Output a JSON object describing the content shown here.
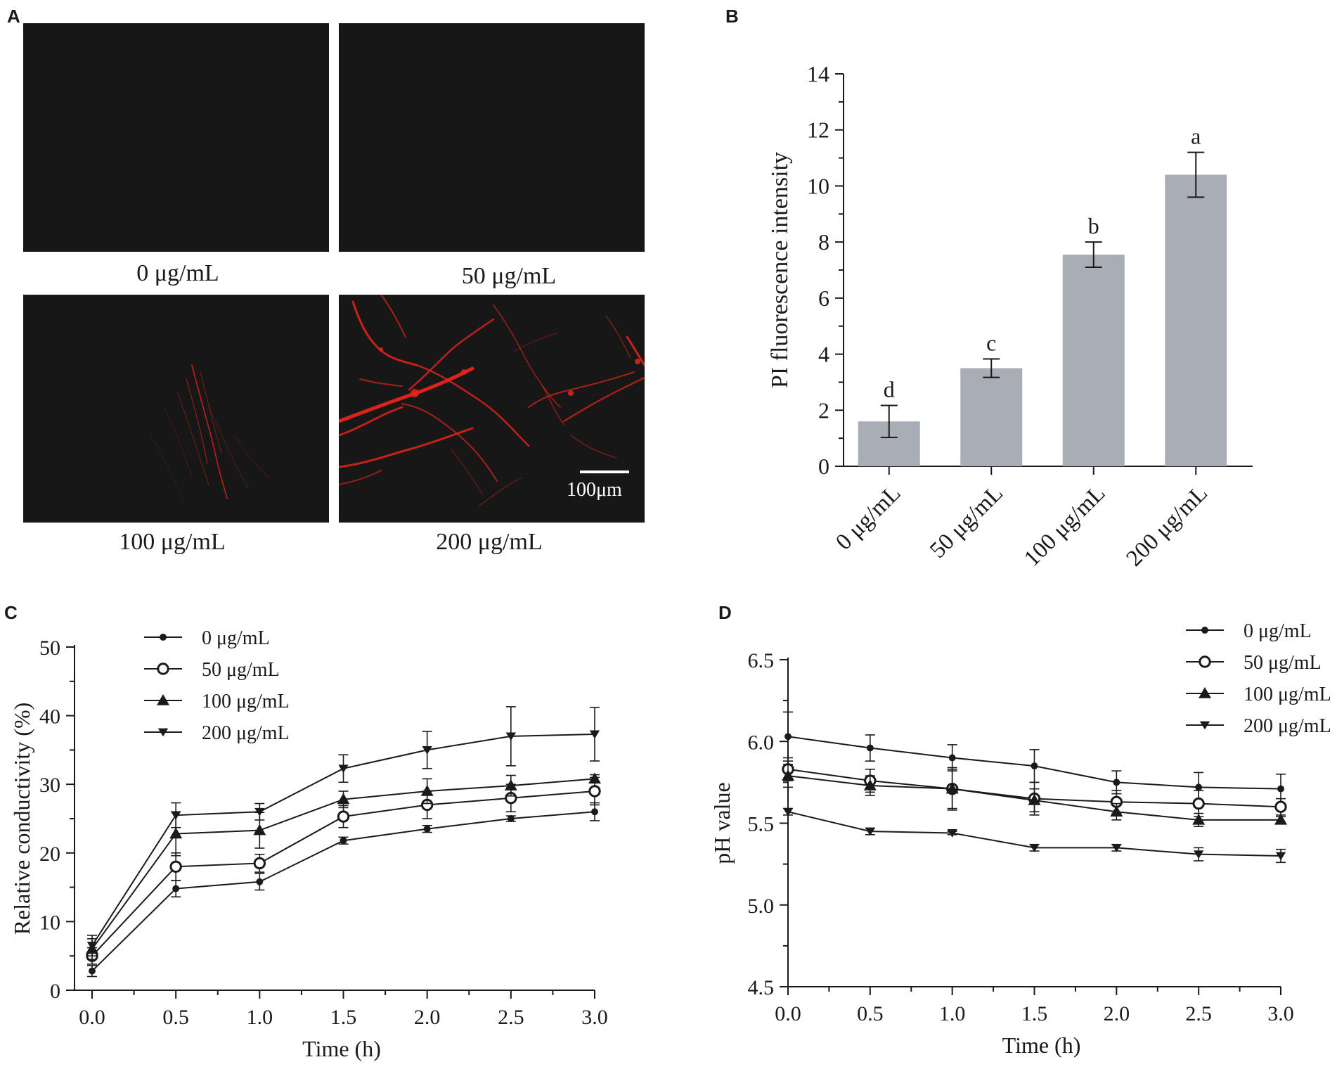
{
  "panels": {
    "A": "A",
    "B": "B",
    "C": "C",
    "D": "D"
  },
  "micrographs": [
    {
      "label": "0 μg/mL",
      "fluorescence": "none"
    },
    {
      "label": "50 μg/mL",
      "fluorescence": "none"
    },
    {
      "label": "100 μg/mL",
      "fluorescence": "weak"
    },
    {
      "label": "200 μg/mL",
      "fluorescence": "strong"
    }
  ],
  "scale_bar": {
    "label": "100μm"
  },
  "colors": {
    "bar": "#a9adb6",
    "line": "#1a1a1a",
    "fluor": "#e8231a",
    "image_bg": "#171717"
  },
  "chart_data": [
    {
      "id": "B",
      "type": "bar",
      "categories": [
        "0 μg/mL",
        "50 μg/mL",
        "100 μg/mL",
        "200 μg/mL"
      ],
      "values": [
        1.6,
        3.5,
        7.55,
        10.4
      ],
      "errors": [
        0.57,
        0.33,
        0.45,
        0.8
      ],
      "significance": [
        "d",
        "c",
        "b",
        "a"
      ],
      "ylabel": "PI fluorescence intensity",
      "xlabel": "",
      "ylim": [
        0,
        14
      ],
      "yticks": [
        0,
        2,
        4,
        6,
        8,
        10,
        12,
        14
      ]
    },
    {
      "id": "C",
      "type": "line",
      "x": [
        0,
        0.5,
        1.0,
        1.5,
        2.0,
        2.5,
        3.0
      ],
      "xticks": [
        "0.0",
        "0.5",
        "1.0",
        "1.5",
        "2.0",
        "2.5",
        "3.0"
      ],
      "xlim": [
        0,
        3
      ],
      "ylim": [
        0,
        50
      ],
      "yticks": [
        0,
        10,
        20,
        30,
        40,
        50
      ],
      "xlabel": "Time (h)",
      "ylabel": "Relative conductivity (%)",
      "legend_position": "top-left",
      "series": [
        {
          "name": "0 μg/mL",
          "marker": "dot",
          "values": [
            2.8,
            14.8,
            15.8,
            21.8,
            23.5,
            25.0,
            26.0
          ],
          "errors": [
            0.8,
            1.2,
            1.2,
            0.5,
            0.5,
            0.4,
            1.3
          ]
        },
        {
          "name": "50 μg/mL",
          "marker": "open-circle",
          "values": [
            5.0,
            18.0,
            18.5,
            25.3,
            27.0,
            28.0,
            29.0
          ],
          "errors": [
            1.2,
            2.0,
            1.3,
            1.6,
            2.0,
            2.0,
            2.0
          ]
        },
        {
          "name": "100 μg/mL",
          "marker": "triangle-up",
          "values": [
            6.0,
            22.8,
            23.3,
            27.8,
            29.0,
            29.8,
            30.8
          ],
          "errors": [
            1.5,
            3.2,
            2.6,
            1.2,
            1.8,
            1.5,
            0.6
          ]
        },
        {
          "name": "200 μg/mL",
          "marker": "triangle-down",
          "values": [
            6.5,
            25.5,
            26.0,
            32.3,
            35.0,
            37.0,
            37.3
          ],
          "errors": [
            1.5,
            1.8,
            1.2,
            2.0,
            2.7,
            4.3,
            3.9
          ]
        }
      ]
    },
    {
      "id": "D",
      "type": "line",
      "x": [
        0,
        0.5,
        1.0,
        1.5,
        2.0,
        2.5,
        3.0
      ],
      "xticks": [
        "0.0",
        "0.5",
        "1.0",
        "1.5",
        "2.0",
        "2.5",
        "3.0"
      ],
      "xlim": [
        0,
        3
      ],
      "ylim": [
        4.5,
        6.5
      ],
      "yticks": [
        4.5,
        5.0,
        5.5,
        6.0,
        6.5
      ],
      "yticklabels": [
        "4.5",
        "5.0",
        "5.5",
        "6.0",
        "6.5"
      ],
      "xlabel": "Time (h)",
      "ylabel": "pH value",
      "legend_position": "top-right",
      "series": [
        {
          "name": "0 μg/mL",
          "marker": "dot",
          "values": [
            6.03,
            5.96,
            5.9,
            5.85,
            5.75,
            5.72,
            5.71
          ],
          "errors": [
            0.15,
            0.08,
            0.08,
            0.1,
            0.07,
            0.09,
            0.09
          ]
        },
        {
          "name": "50 μg/mL",
          "marker": "open-circle",
          "values": [
            5.83,
            5.76,
            5.71,
            5.65,
            5.63,
            5.62,
            5.6
          ],
          "errors": [
            0.07,
            0.07,
            0.13,
            0.1,
            0.07,
            0.08,
            0.05
          ]
        },
        {
          "name": "100 μg/mL",
          "marker": "triangle-up",
          "values": [
            5.79,
            5.73,
            5.71,
            5.64,
            5.57,
            5.52,
            5.52
          ],
          "errors": [
            0.07,
            0.06,
            0.12,
            0.07,
            0.05,
            0.04,
            0.02
          ]
        },
        {
          "name": "200 μg/mL",
          "marker": "triangle-down",
          "values": [
            5.57,
            5.45,
            5.44,
            5.35,
            5.35,
            5.31,
            5.3
          ],
          "errors": [
            0.02,
            0.02,
            0.01,
            0.02,
            0.02,
            0.04,
            0.04
          ]
        }
      ]
    }
  ]
}
